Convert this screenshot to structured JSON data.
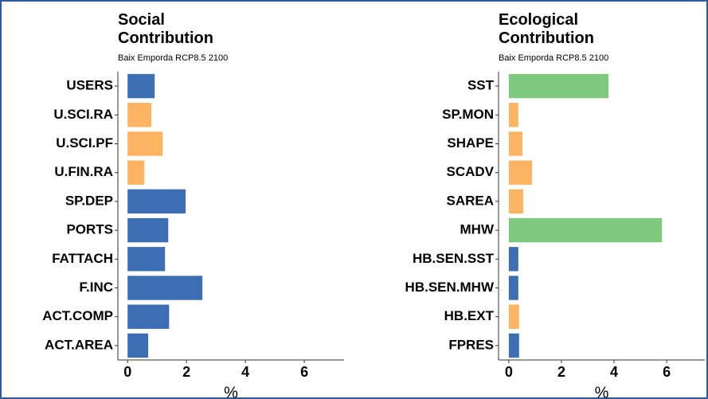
{
  "chart_data": [
    {
      "type": "bar",
      "orientation": "horizontal",
      "title": "Social Contribution",
      "subtitle": "Baix Emporda RCP8.5 2100",
      "x_label": "%",
      "categories": [
        "USERS",
        "U.SCI.RA",
        "U.SCI.PF",
        "U.FIN.RA",
        "SP.DEP",
        "PORTS",
        "FATTACH",
        "F.INC",
        "ACT.COMP",
        "ACT.AREA"
      ],
      "values": [
        0.92,
        0.81,
        1.19,
        0.57,
        1.97,
        1.38,
        1.27,
        2.54,
        1.41,
        0.7
      ],
      "colors": [
        "#3d6db3",
        "#fdb462",
        "#fdb462",
        "#fdb462",
        "#3d6db3",
        "#3d6db3",
        "#3d6db3",
        "#3d6db3",
        "#3d6db3",
        "#3d6db3"
      ],
      "xlim": [
        -0.33,
        7.35
      ],
      "xticks": [
        0,
        2,
        4,
        6
      ],
      "grid": false
    },
    {
      "type": "bar",
      "orientation": "horizontal",
      "title": "Ecological Contribution",
      "subtitle": "Baix Emporda RCP8.5 2100",
      "x_label": "%",
      "categories": [
        "SST",
        "SP.MON",
        "SHAPE",
        "SCADV",
        "SAREA",
        "MHW",
        "HB.SEN.SST",
        "HB.SEN.MHW",
        "HB.EXT",
        "FPRES"
      ],
      "values": [
        3.79,
        0.36,
        0.52,
        0.88,
        0.55,
        5.82,
        0.36,
        0.36,
        0.39,
        0.39
      ],
      "colors": [
        "#7fc97f",
        "#fdb462",
        "#fdb462",
        "#fdb462",
        "#fdb462",
        "#7fc97f",
        "#3d6db3",
        "#3d6db3",
        "#fdb462",
        "#3d6db3"
      ],
      "xlim": [
        -0.39,
        7.45
      ],
      "xticks": [
        0,
        2,
        4,
        6
      ],
      "grid": false
    }
  ]
}
